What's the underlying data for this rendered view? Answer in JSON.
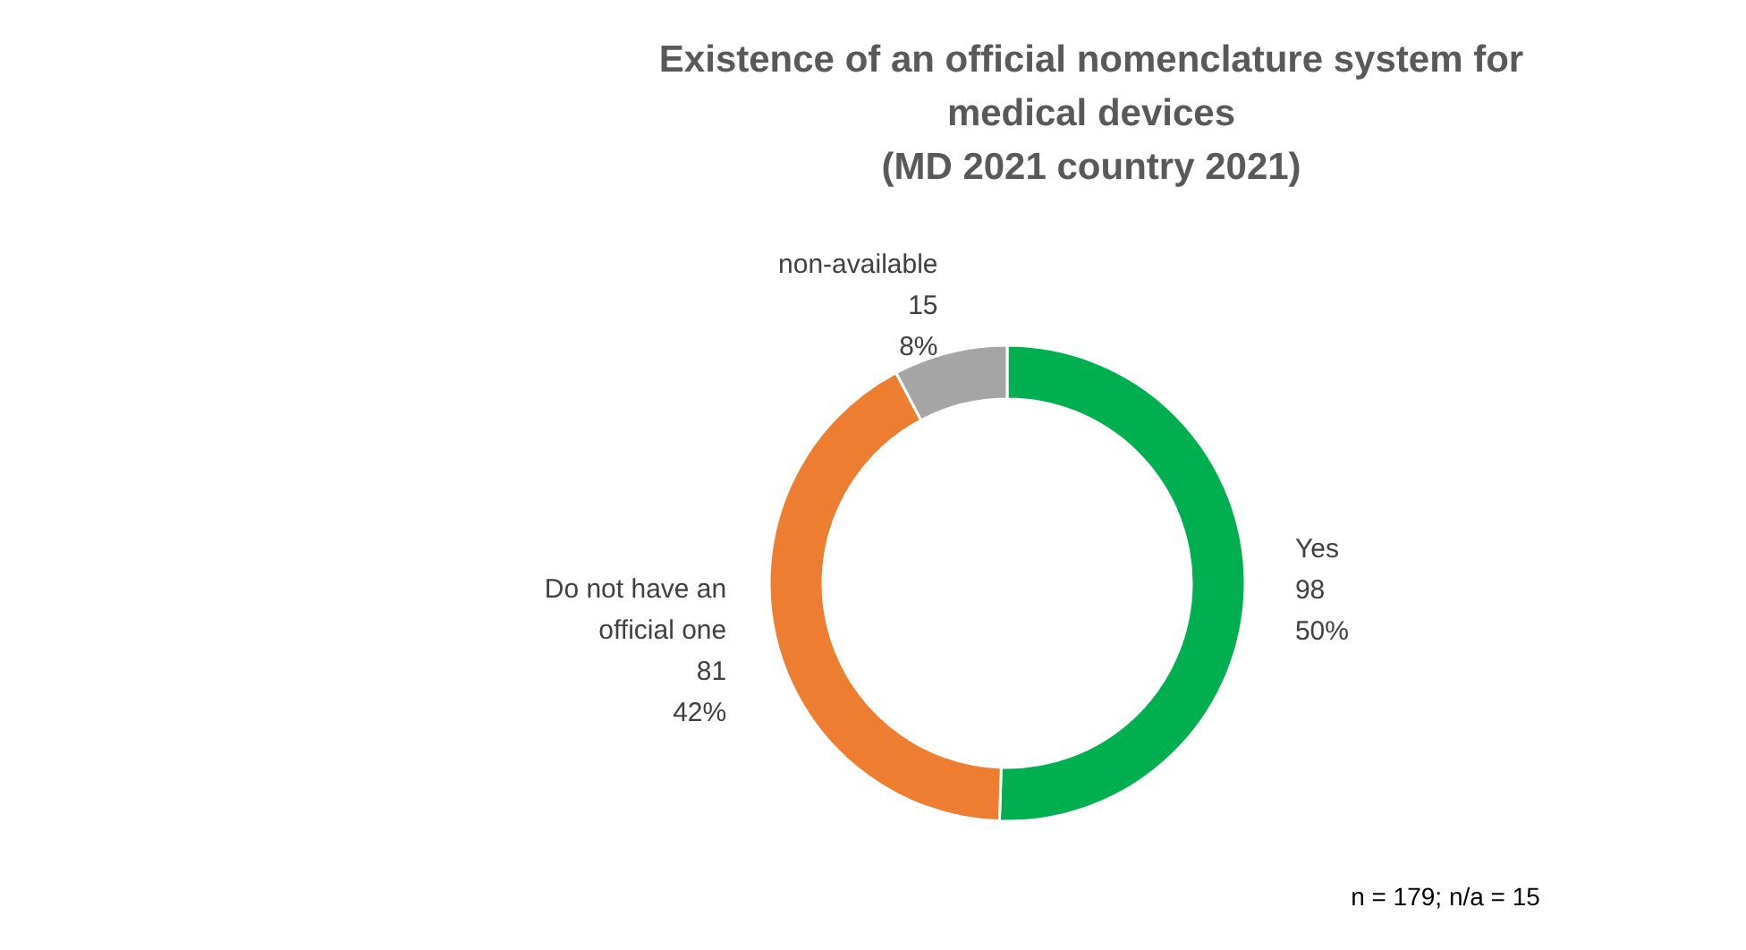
{
  "chart_data": {
    "type": "donut",
    "title": "Existence of an official nomenclature system for medical devices",
    "subtitle": "(MD 2021 country 2021)",
    "categories": [
      "Yes",
      "Do not have an official one",
      "non-available"
    ],
    "values": [
      98,
      81,
      15
    ],
    "colors": [
      "#00b050",
      "#ed7d31",
      "#a5a5a5"
    ],
    "value_labels": [
      "98\n50%",
      "81\n42%",
      "15\n8%"
    ],
    "legend": false,
    "annotations": [
      "n = 179; n/a = 15"
    ]
  }
}
